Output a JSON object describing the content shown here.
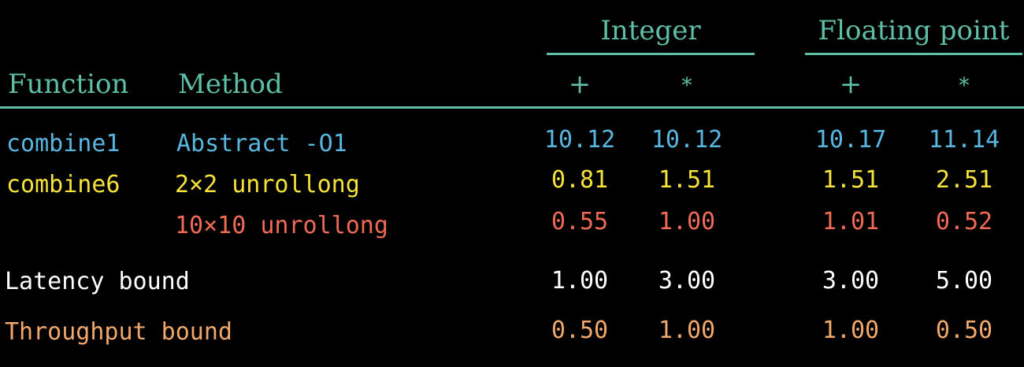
{
  "colors": {
    "background": "#000000",
    "header": "#5fbfa6",
    "combine1": "#58b6e0",
    "combine6_2x2": "#f5e23a",
    "combine6_10x10": "#f06a55",
    "latency": "#ffffff",
    "throughput": "#f2a86a"
  },
  "header": {
    "group_integer": "Integer",
    "group_float": "Floating point",
    "col_function": "Function",
    "col_method": "Method",
    "int_plus": "+",
    "int_times": "*",
    "fp_plus": "+",
    "fp_times": "*"
  },
  "rows": [
    {
      "function": "combine1",
      "method": "Abstract -O1",
      "values": [
        "10.12",
        "10.12",
        "10.17",
        "11.14"
      ]
    },
    {
      "function": "combine6",
      "method": "2×2 unrollong",
      "values": [
        "0.81",
        "1.51",
        "1.51",
        "2.51"
      ]
    },
    {
      "function": "",
      "method": "10×10 unrollong",
      "values": [
        "0.55",
        "1.00",
        "1.01",
        "0.52"
      ]
    }
  ],
  "bounds": [
    {
      "label": "Latency bound",
      "values": [
        "1.00",
        "3.00",
        "3.00",
        "5.00"
      ]
    },
    {
      "label": "Throughput bound",
      "values": [
        "0.50",
        "1.00",
        "1.00",
        "0.50"
      ]
    }
  ]
}
